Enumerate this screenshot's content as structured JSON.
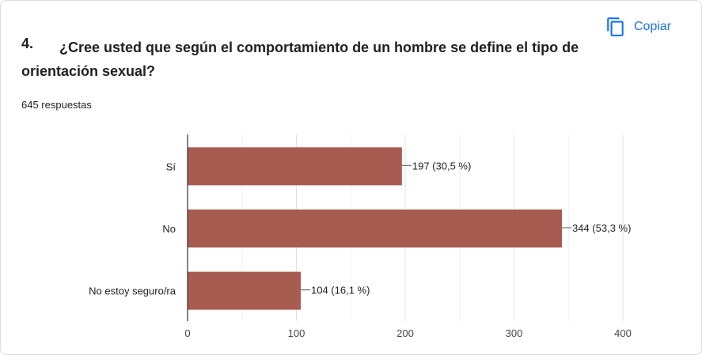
{
  "question": {
    "number": "4.",
    "text": "¿Cree usted que según el comportamiento de un hombre se define el tipo de orientación sexual?",
    "responses": "645 respuestas"
  },
  "copy_button": {
    "label": "Copiar",
    "icon": "copy-icon"
  },
  "colors": {
    "bar": "#a85b50",
    "accent": "#1a73e8",
    "grid": "#e8e8e8",
    "axis": "#333333"
  },
  "chart_data": {
    "type": "bar",
    "orientation": "horizontal",
    "categories": [
      "Sí",
      "No",
      "No estoy seguro/ra"
    ],
    "values": [
      197,
      344,
      104
    ],
    "data_labels": [
      "197 (30,5 %)",
      "344 (53,3 %)",
      "104 (16,1 %)"
    ],
    "xlim": [
      0,
      400
    ],
    "xticks": [
      "0",
      "100",
      "200",
      "300",
      "400"
    ],
    "grid": true
  }
}
